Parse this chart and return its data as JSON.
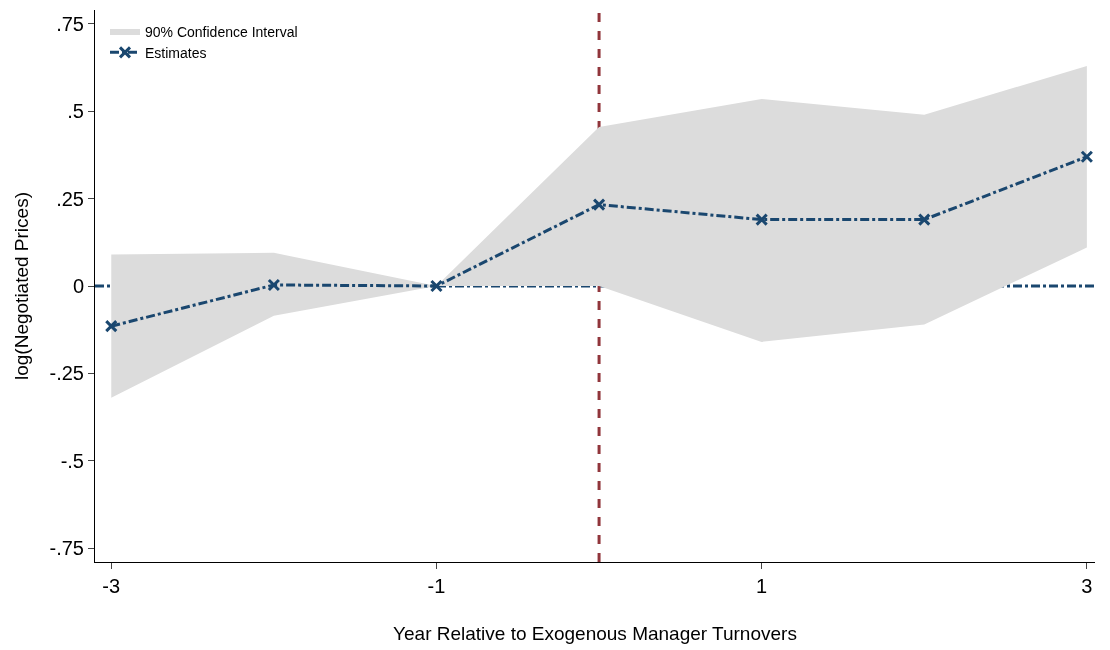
{
  "chart_data": {
    "type": "line",
    "xlabel": "Year Relative to Exogenous Manager Turnovers",
    "ylabel": "log(Negotiated Prices)",
    "x": [
      -3,
      -2,
      -1,
      0,
      1,
      2,
      3
    ],
    "series": [
      {
        "name": "90% Confidence Interval",
        "type": "area",
        "color": "#dcdcdc",
        "values": [
          null,
          null,
          null,
          null,
          null,
          null,
          null
        ],
        "lower": [
          -0.32,
          -0.085,
          0,
          0,
          -0.16,
          -0.11,
          0.11
        ],
        "upper": [
          0.09,
          0.095,
          0,
          0.455,
          0.535,
          0.49,
          0.63
        ]
      },
      {
        "name": "Estimates",
        "color": "#1a476f",
        "values": [
          -0.115,
          0.003,
          0,
          0.233,
          0.19,
          0.19,
          0.37
        ],
        "marker": "cross",
        "line_style": "dashdot"
      }
    ],
    "xlim": [
      -3.1,
      3.05
    ],
    "ylim": [
      -0.79,
      0.79
    ],
    "xticks": [
      -3,
      -1,
      1,
      3
    ],
    "yticks": [
      {
        "value": 0.75,
        "label": ".75"
      },
      {
        "value": 0.5,
        "label": ".5"
      },
      {
        "value": 0.25,
        "label": ".25"
      },
      0,
      {
        "value": -0.25,
        "label": "-.25"
      },
      {
        "value": -0.5,
        "label": "-.5"
      },
      {
        "value": -0.75,
        "label": "-.75"
      }
    ],
    "ref_lines": [
      {
        "axis": "y",
        "value": 0,
        "color": "#1a476f",
        "line_style": "dashdot"
      },
      {
        "axis": "x",
        "value": 0,
        "color": "#90353b",
        "line_style": "dashed"
      }
    ],
    "grid": false,
    "legend": "top left"
  }
}
